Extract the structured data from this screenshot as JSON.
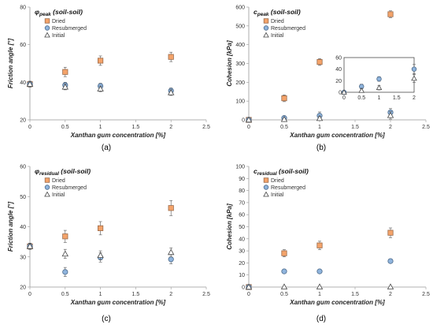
{
  "colors": {
    "dried_fill": "#f4a36a",
    "dried_edge": "#9a6a4a",
    "resub_fill": "#8fb4dd",
    "resub_edge": "#4d6a8a",
    "initial_edge": "#444444",
    "axis": "#999999",
    "error_bar": "#555555"
  },
  "chart_data": [
    {
      "type": "scatter",
      "title_symbol": "φ",
      "title_subscript": "peak",
      "title_suffix": "(soil-soil)",
      "xlabel": "Xanthan gum concentration [%]",
      "ylabel": "Friction angle [°]",
      "caption": "(a)",
      "xlim": [
        0,
        2.5
      ],
      "ylim": [
        20,
        80
      ],
      "xticks": [
        "0",
        "0.5",
        "1",
        "1.5",
        "2",
        "2.5"
      ],
      "yticks": [
        "20",
        "40",
        "60",
        "80"
      ],
      "legend_position": "top-left",
      "series": [
        {
          "name": "Dried",
          "marker": "square",
          "x": [
            0,
            0.5,
            1,
            2
          ],
          "y": [
            39,
            45.5,
            51.5,
            53.5
          ],
          "err": [
            1.5,
            2.5,
            2.5,
            2.5
          ]
        },
        {
          "name": "Resubmerged",
          "marker": "circle",
          "x": [
            0,
            0.5,
            1,
            2
          ],
          "y": [
            39,
            38.5,
            38,
            35.5
          ],
          "err": [
            1.5,
            1.5,
            1.5,
            1.5
          ]
        },
        {
          "name": "Initial",
          "marker": "triangle",
          "x": [
            0,
            0.5,
            1,
            2
          ],
          "y": [
            39,
            37.5,
            36.5,
            34.5
          ],
          "err": [
            1.5,
            1.5,
            1.5,
            1.5
          ]
        }
      ]
    },
    {
      "type": "scatter",
      "title_symbol": "c",
      "title_subscript": "peak",
      "title_suffix": "(soil-soil)",
      "xlabel": "Xanthan gum concentration [%]",
      "ylabel": "Cohesion [kPa]",
      "caption": "(b)",
      "xlim": [
        0,
        2.5
      ],
      "ylim": [
        0,
        600
      ],
      "xticks": [
        "0",
        "0.5",
        "1",
        "1.5",
        "2",
        "2.5"
      ],
      "yticks": [
        "0",
        "100",
        "200",
        "300",
        "400",
        "500",
        "600"
      ],
      "legend_position": "top-left",
      "series": [
        {
          "name": "Dried",
          "marker": "square",
          "x": [
            0,
            0.5,
            1,
            2
          ],
          "y": [
            0,
            115,
            308,
            562
          ],
          "err": [
            0,
            18,
            18,
            18
          ]
        },
        {
          "name": "Resubmerged",
          "marker": "circle",
          "x": [
            0,
            0.5,
            1,
            2
          ],
          "y": [
            0,
            10,
            22,
            40
          ],
          "err": [
            0,
            10,
            20,
            20
          ]
        },
        {
          "name": "Initial",
          "marker": "triangle",
          "x": [
            0,
            0.5,
            1,
            2
          ],
          "y": [
            0,
            3,
            8,
            24
          ],
          "err": [
            0,
            5,
            10,
            20
          ]
        }
      ],
      "inset": {
        "xlim": [
          0,
          2
        ],
        "ylim": [
          0,
          60
        ],
        "xticks": [
          "0",
          "0.5",
          "1",
          "1.5",
          "2"
        ],
        "yticks": [
          "0",
          "20",
          "40",
          "60"
        ],
        "series": [
          {
            "name": "Resubmerged",
            "marker": "circle",
            "x": [
              0,
              0.5,
              1,
              2
            ],
            "y": [
              0,
              10,
              23,
              40
            ],
            "err": [
              0,
              4,
              4,
              8
            ]
          },
          {
            "name": "Initial",
            "marker": "triangle",
            "x": [
              0,
              0.5,
              1,
              2
            ],
            "y": [
              0,
              3,
              8,
              24
            ],
            "err": [
              0,
              3,
              4,
              7
            ]
          }
        ]
      }
    },
    {
      "type": "scatter",
      "title_symbol": "φ",
      "title_subscript": "residual",
      "title_suffix": "(soil-soil)",
      "xlabel": "Xanthan gum concentration [%]",
      "ylabel": "Friction angle [°]",
      "caption": "(c)",
      "xlim": [
        0,
        2.5
      ],
      "ylim": [
        20,
        60
      ],
      "xticks": [
        "0",
        "0.5",
        "1",
        "1.5",
        "2",
        "2.5"
      ],
      "yticks": [
        "20",
        "30",
        "40",
        "50",
        "60"
      ],
      "legend_position": "top-right",
      "series": [
        {
          "name": "Dried",
          "marker": "square",
          "x": [
            0,
            0.5,
            1,
            2
          ],
          "y": [
            33.5,
            36.8,
            39.5,
            46.2
          ],
          "err": [
            1,
            2,
            2.2,
            2.5
          ]
        },
        {
          "name": "Resubmerged",
          "marker": "circle",
          "x": [
            0,
            0.5,
            1,
            2
          ],
          "y": [
            33.5,
            25,
            29.8,
            29.2
          ],
          "err": [
            1,
            1.5,
            1.5,
            1.5
          ]
        },
        {
          "name": "Initial",
          "marker": "triangle",
          "x": [
            0,
            0.5,
            1,
            2
          ],
          "y": [
            33.5,
            31,
            30.5,
            31.5
          ],
          "err": [
            1,
            1.5,
            1.5,
            1.5
          ]
        }
      ]
    },
    {
      "type": "scatter",
      "title_symbol": "c",
      "title_subscript": "residual",
      "title_suffix": "(soil-soil)",
      "xlabel": "Xanthan gum concentration [%]",
      "ylabel": "Cohesion [kPa]",
      "caption": "(d)",
      "xlim": [
        0,
        2.5
      ],
      "ylim": [
        0,
        100
      ],
      "xticks": [
        "0",
        "0.5",
        "1",
        "1.5",
        "2",
        "2.5"
      ],
      "yticks": [
        "0",
        "10",
        "20",
        "30",
        "40",
        "50",
        "60",
        "70",
        "80",
        "90",
        "100"
      ],
      "legend_position": "top-left",
      "series": [
        {
          "name": "Dried",
          "marker": "square",
          "x": [
            0,
            0.5,
            1,
            2
          ],
          "y": [
            0,
            28,
            34.5,
            45
          ],
          "err": [
            0,
            3,
            3.5,
            4
          ]
        },
        {
          "name": "Resubmerged",
          "marker": "circle",
          "x": [
            0,
            0.5,
            1,
            2
          ],
          "y": [
            0,
            13,
            13,
            21.5
          ],
          "err": [
            0,
            1,
            1,
            1.5
          ]
        },
        {
          "name": "Initial",
          "marker": "triangle",
          "x": [
            0,
            0.5,
            1,
            2
          ],
          "y": [
            0,
            0.2,
            0.2,
            0.2
          ],
          "err": [
            0,
            0,
            0,
            0
          ]
        }
      ]
    }
  ]
}
